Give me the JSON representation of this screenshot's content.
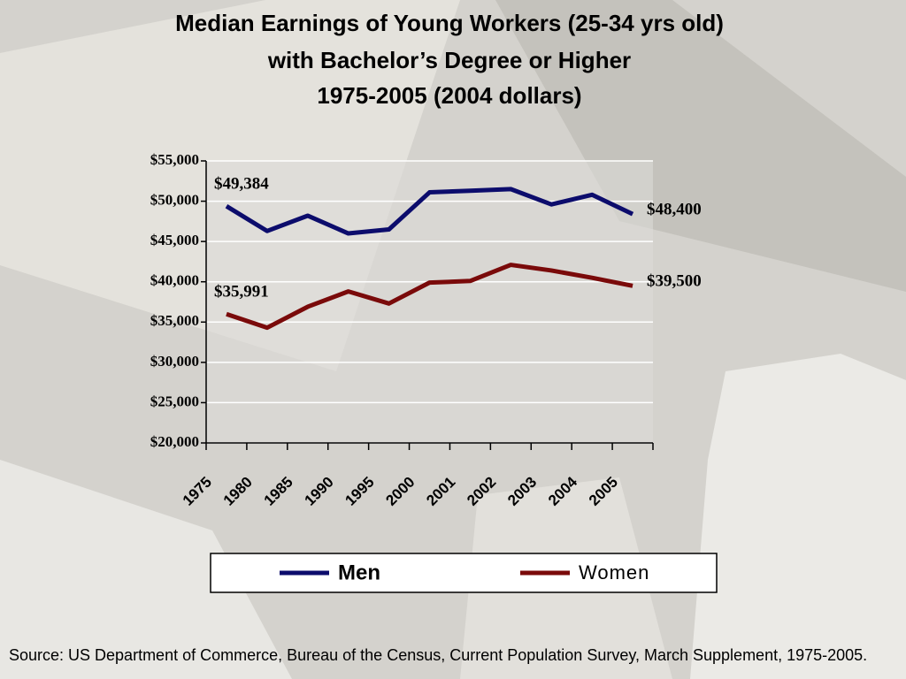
{
  "chart_data": {
    "type": "line",
    "title": [
      "Median Earnings of Young Workers (25-34 yrs old)",
      "with Bachelor’s Degree or Higher",
      "1975-2005 (2004 dollars)"
    ],
    "categories": [
      "1975",
      "1980",
      "1985",
      "1990",
      "1995",
      "2000",
      "2001",
      "2002",
      "2003",
      "2004",
      "2005"
    ],
    "series": [
      {
        "name": "Men",
        "color": "#0c0c6c",
        "values": [
          49384,
          46300,
          48200,
          46000,
          46500,
          51100,
          51300,
          51500,
          49600,
          50800,
          48400
        ],
        "value_labels": [
          "$49,384",
          null,
          null,
          null,
          null,
          null,
          null,
          null,
          null,
          null,
          "$48,400"
        ]
      },
      {
        "name": "Women",
        "color": "#7a0a0a",
        "values": [
          35991,
          34300,
          36900,
          38800,
          37300,
          39900,
          40100,
          42100,
          41400,
          40500,
          39500
        ],
        "value_labels": [
          "$35,991",
          null,
          null,
          null,
          null,
          null,
          null,
          null,
          null,
          null,
          "$39,500"
        ]
      }
    ],
    "ylim": [
      20000,
      55000
    ],
    "yticks": [
      {
        "value": 20000,
        "label": "$20,000"
      },
      {
        "value": 25000,
        "label": "$25,000"
      },
      {
        "value": 30000,
        "label": "$30,000"
      },
      {
        "value": 35000,
        "label": "$35,000"
      },
      {
        "value": 40000,
        "label": "$40,000"
      },
      {
        "value": 45000,
        "label": "$45,000"
      },
      {
        "value": 50000,
        "label": "$50,000"
      },
      {
        "value": 55000,
        "label": "$55,000"
      }
    ],
    "grid": true,
    "legend": "bottom",
    "source": "Source: US Department of Commerce, Bureau of the Census, Current Population Survey, March Supplement, 1975-2005."
  }
}
